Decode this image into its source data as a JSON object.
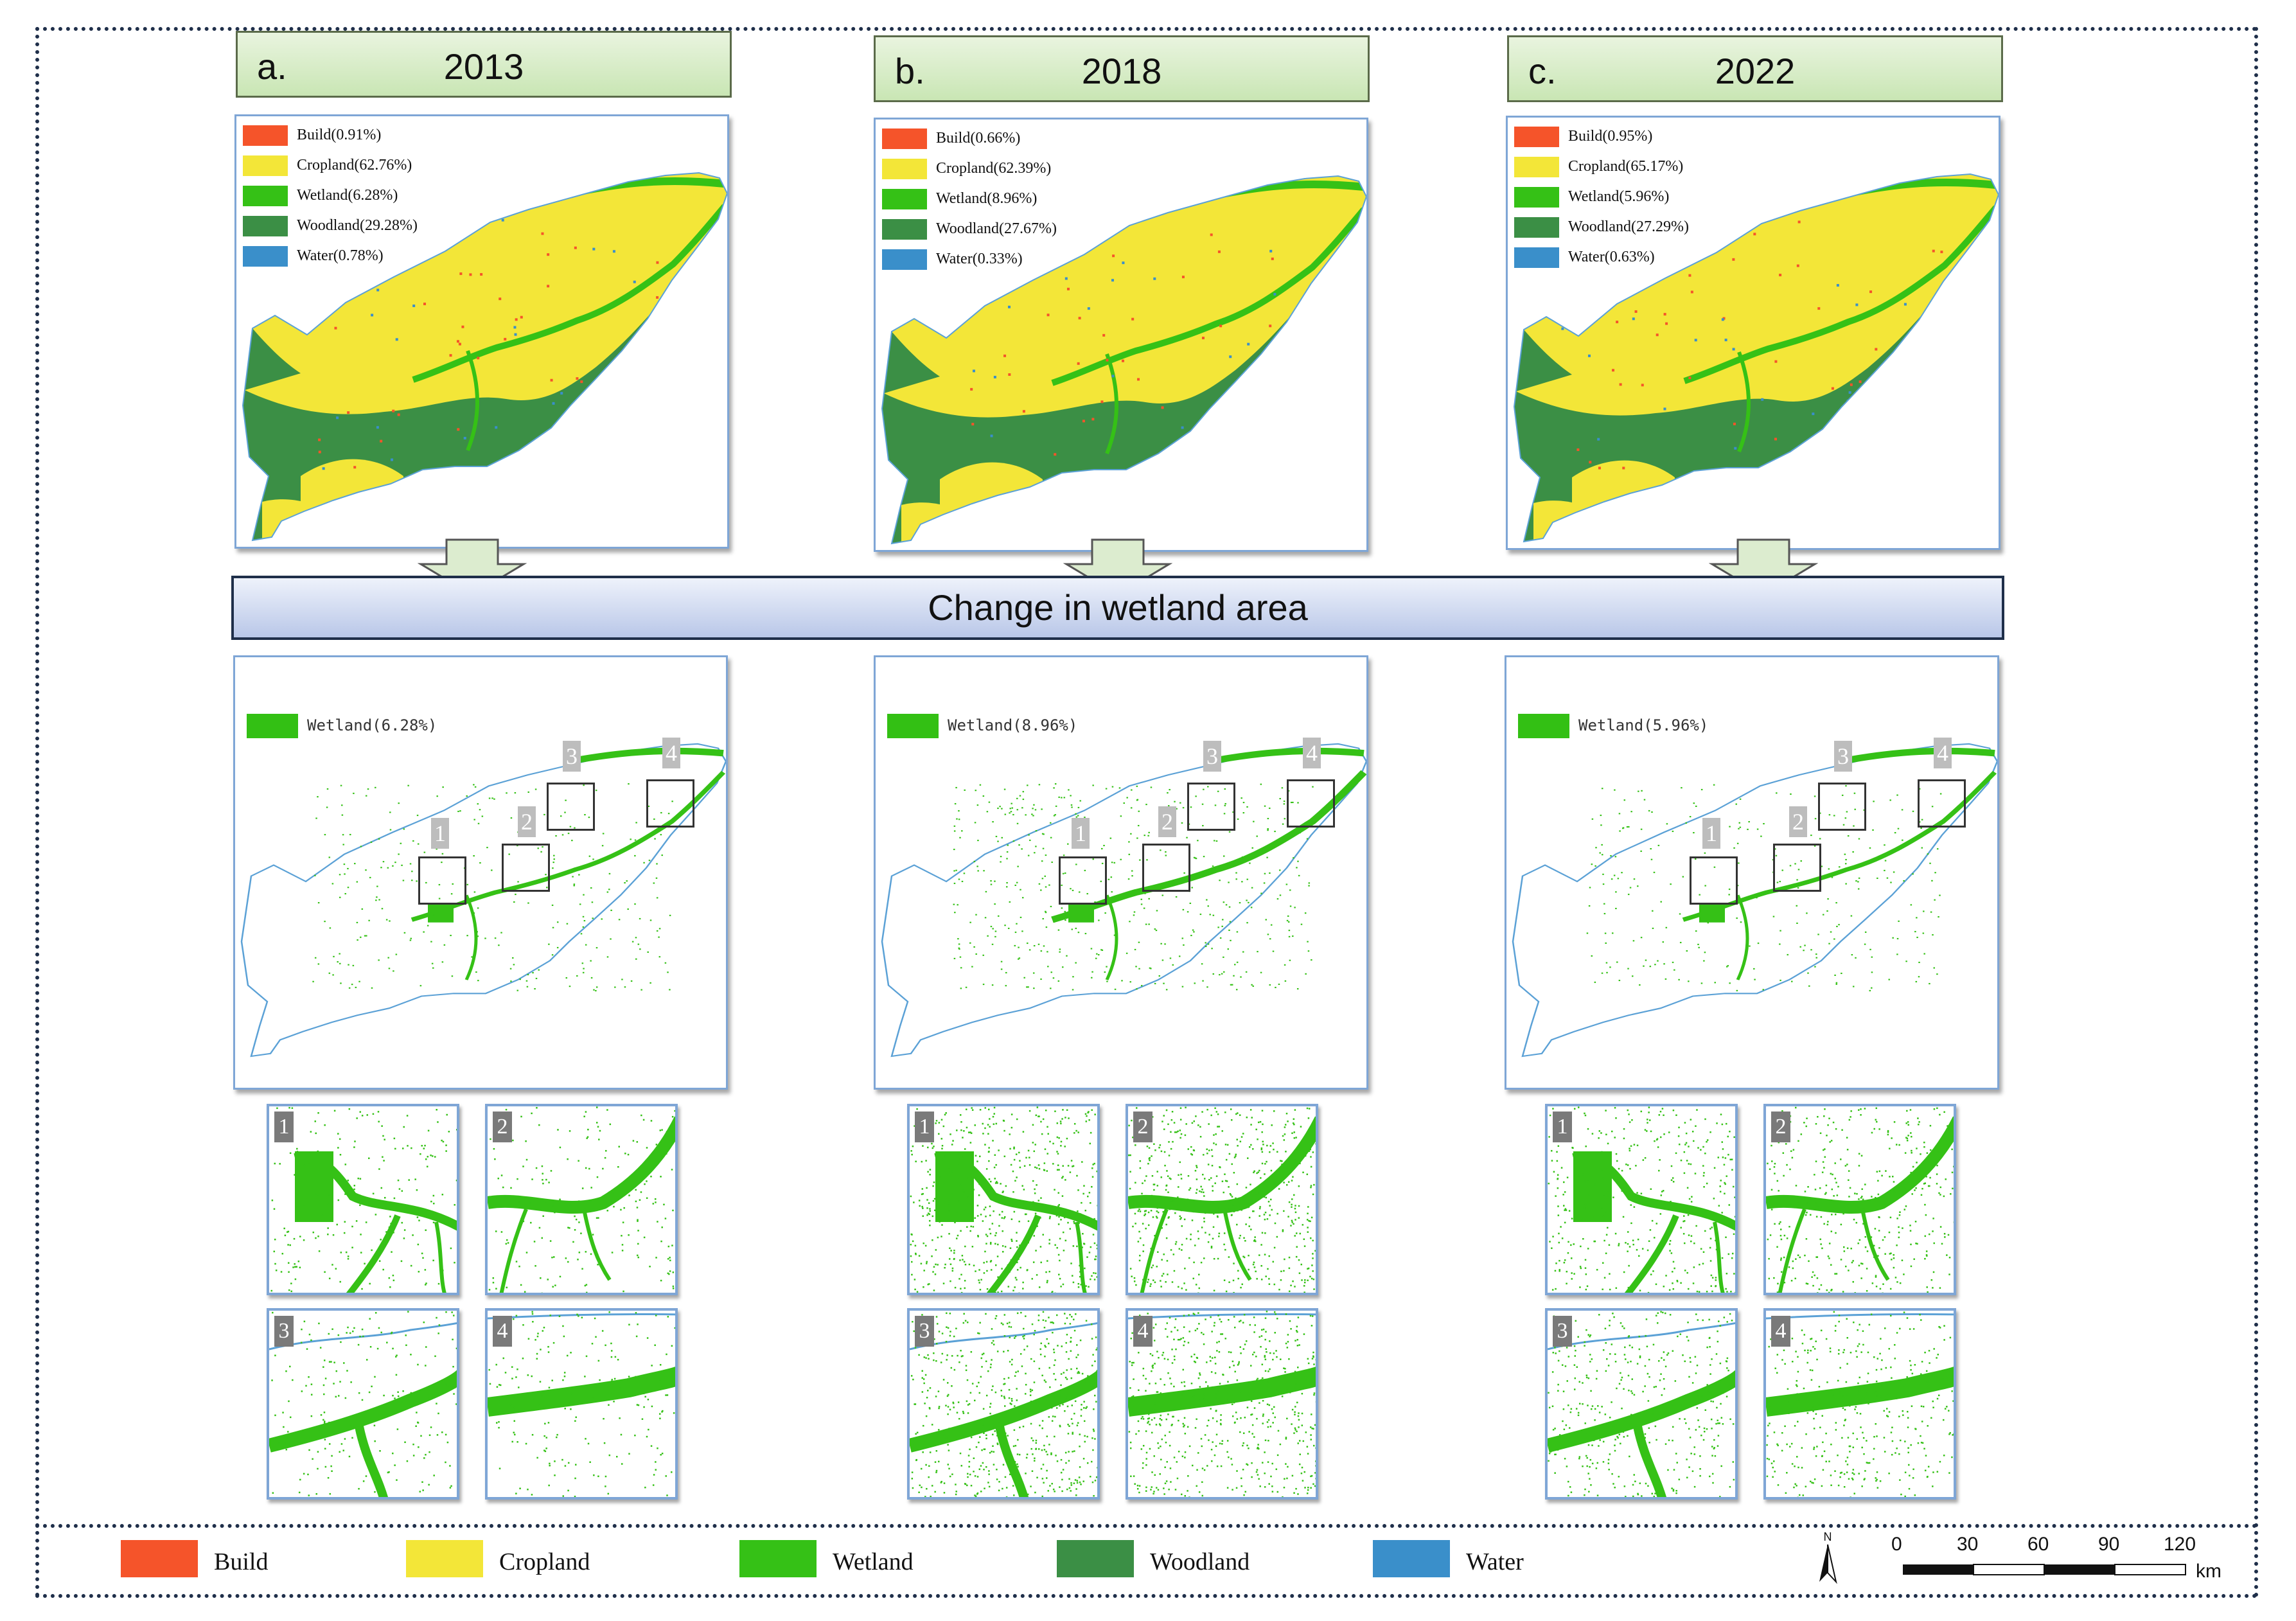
{
  "colors": {
    "build": "#f5542a",
    "cropland": "#f3e638",
    "wetland": "#35c116",
    "woodland": "#3b8f45",
    "water": "#3a8fca",
    "boundary": "#5ba1d6"
  },
  "panels": [
    {
      "letter": "a.",
      "year": "2013",
      "legend": [
        {
          "key": "build",
          "label": "Build(0.91%)"
        },
        {
          "key": "cropland",
          "label": "Cropland(62.76%)"
        },
        {
          "key": "wetland",
          "label": "Wetland(6.28%)"
        },
        {
          "key": "woodland",
          "label": "Woodland(29.28%)"
        },
        {
          "key": "water",
          "label": "Water(0.78%)"
        }
      ],
      "wetland_label": "Wetland(6.28%)",
      "markers": [
        "1",
        "2",
        "3",
        "4"
      ],
      "zooms": [
        "1",
        "2",
        "3",
        "4"
      ]
    },
    {
      "letter": "b.",
      "year": "2018",
      "legend": [
        {
          "key": "build",
          "label": "Build(0.66%)"
        },
        {
          "key": "cropland",
          "label": "Cropland(62.39%)"
        },
        {
          "key": "wetland",
          "label": "Wetland(8.96%)"
        },
        {
          "key": "woodland",
          "label": "Woodland(27.67%)"
        },
        {
          "key": "water",
          "label": "Water(0.33%)"
        }
      ],
      "wetland_label": "Wetland(8.96%)",
      "markers": [
        "1",
        "2",
        "3",
        "4"
      ],
      "zooms": [
        "1",
        "2",
        "3",
        "4"
      ]
    },
    {
      "letter": "c.",
      "year": "2022",
      "legend": [
        {
          "key": "build",
          "label": "Build(0.95%)"
        },
        {
          "key": "cropland",
          "label": "Cropland(65.17%)"
        },
        {
          "key": "wetland",
          "label": "Wetland(5.96%)"
        },
        {
          "key": "woodland",
          "label": "Woodland(27.29%)"
        },
        {
          "key": "water",
          "label": "Water(0.63%)"
        }
      ],
      "wetland_label": "Wetland(5.96%)",
      "markers": [
        "1",
        "2",
        "3",
        "4"
      ],
      "zooms": [
        "1",
        "2",
        "3",
        "4"
      ]
    }
  ],
  "banner": "Change in wetland area",
  "bottom_legend": [
    {
      "key": "build",
      "label": "Build"
    },
    {
      "key": "cropland",
      "label": "Cropland"
    },
    {
      "key": "wetland",
      "label": "Wetland"
    },
    {
      "key": "woodland",
      "label": "Woodland"
    },
    {
      "key": "water",
      "label": "Water"
    }
  ],
  "north_label": "N",
  "scale": {
    "ticks": [
      "0",
      "30",
      "60",
      "90",
      "120"
    ],
    "unit": "km"
  }
}
